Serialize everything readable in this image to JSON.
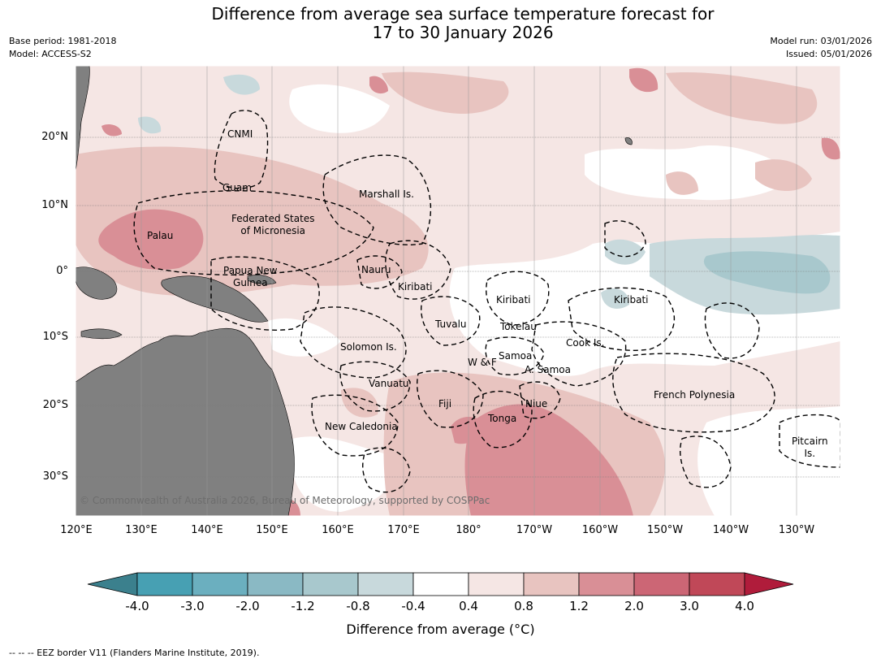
{
  "title": {
    "line1": "Difference from average sea surface temperature forecast for",
    "line2": "17 to 30 January 2026"
  },
  "meta": {
    "base_period": "Base period: 1981-2018",
    "model": "Model: ACCESS-S2",
    "model_run": "Model run: 03/01/2026",
    "issued": "Issued: 05/01/2026"
  },
  "map": {
    "lat_labels": [
      "20°N",
      "10°N",
      "0°",
      "10°S",
      "20°S",
      "30°S"
    ],
    "lon_labels": [
      "120°E",
      "130°E",
      "140°E",
      "150°E",
      "160°E",
      "170°E",
      "180°",
      "170°W",
      "160°W",
      "150°W",
      "140°W",
      "130°W"
    ],
    "copyright": "© Commonwealth of Australia 2026, Bureau of Meteorology, supported by COSPPac",
    "regions": {
      "cnmi": "CNMI",
      "guam": "Guam",
      "marshall": "Marshall Is.",
      "fsm1": "Federated States",
      "fsm2": "of Micronesia",
      "palau": "Palau",
      "png1": "Papua New",
      "png2": "Guinea",
      "nauru": "Nauru",
      "kiribati_w": "Kiribati",
      "kiribati_c": "Kiribati",
      "kiribati_e": "Kiribati",
      "tuvalu": "Tuvalu",
      "tokelau": "Tokelau",
      "solomon": "Solomon Is.",
      "wf": "W & F",
      "samoa": "Samoa",
      "asamoa": "A. Samoa",
      "cook": "Cook Is.",
      "vanuatu": "Vanuatu",
      "fiji": "Fiji",
      "niue": "Niue",
      "tonga": "Tonga",
      "frenchpoly": "French Polynesia",
      "newcal": "New Caledonia",
      "pitcairn1": "Pitcairn",
      "pitcairn2": "Is."
    }
  },
  "colorbar": {
    "ticks": [
      "-4.0",
      "-3.0",
      "-2.0",
      "-1.2",
      "-0.8",
      "-0.4",
      "0.4",
      "0.8",
      "1.2",
      "2.0",
      "3.0",
      "4.0"
    ],
    "colors": {
      "lt_m4": "#3b808d",
      "b1": "#47a0b3",
      "b2": "#6bafbf",
      "b3": "#8ab9c4",
      "b4": "#a8c8cd",
      "b5": "#c8d9dc",
      "b6": "#ffffff",
      "b7": "#f5e6e4",
      "b8": "#e8c4c0",
      "b9": "#d98f96",
      "b10": "#cc6675",
      "b11": "#c04858",
      "gt_4": "#b01c3b",
      "land": "#808080"
    },
    "label": "Difference from average (°C)"
  },
  "footer": "-- -- -- EEZ border V11 (Flanders Marine Institute, 2019)."
}
